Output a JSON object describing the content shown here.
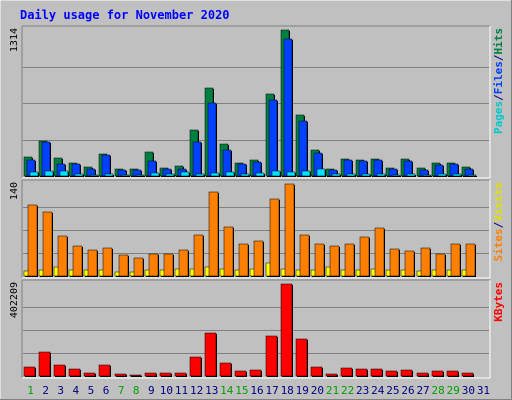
{
  "chart_data": {
    "type": "bar",
    "title": "Daily usage for November 2020",
    "colors": {
      "background": "#c0c0c0",
      "frame_light": "#ffffff",
      "frame_dark": "#808080",
      "title": "#0000ff",
      "grid": "#808080",
      "hits": "#008040",
      "files": "#0040ff",
      "pages": "#00e0ff",
      "visits": "#ffff00",
      "sites": "#ff8000",
      "kbytes": "#ff0000",
      "weekend_day": "#00a000",
      "weekday_day": "#000080"
    },
    "days": [
      1,
      2,
      3,
      4,
      5,
      6,
      7,
      8,
      9,
      10,
      11,
      12,
      13,
      14,
      15,
      16,
      17,
      18,
      19,
      20,
      21,
      22,
      23,
      24,
      25,
      26,
      27,
      28,
      29,
      30,
      31
    ],
    "weekend_days": [
      1,
      7,
      8,
      14,
      15,
      21,
      22,
      28,
      29
    ],
    "panels": [
      {
        "id": "hits-files-pages",
        "ymax": 1314,
        "ymax_label": "1314",
        "legend": [
          {
            "text": "Pages",
            "color": "#00c8c8"
          },
          {
            "text": "/",
            "color": "#000080"
          },
          {
            "text": "Files",
            "color": "#0040ff"
          },
          {
            "text": "/",
            "color": "#000080"
          },
          {
            "text": "Hits",
            "color": "#008040"
          }
        ],
        "series": [
          {
            "name": "Hits",
            "color": "#008040",
            "values": [
              175,
              311,
              158,
              121,
              79,
              202,
              66,
              62,
              217,
              72,
              87,
              414,
              795,
              288,
              121,
              146,
              742,
              1314,
              551,
              233,
              67,
              151,
              145,
              151,
              76,
              151,
              73,
              118,
              118,
              78,
              0
            ]
          },
          {
            "name": "Files",
            "color": "#0040ff",
            "values": [
              148,
              307,
              110,
              110,
              62,
              189,
              58,
              54,
              131,
              66,
              62,
              305,
              657,
              233,
              109,
              124,
              682,
              1233,
              498,
              210,
              55,
              144,
              131,
              144,
              64,
              139,
              56,
              102,
              106,
              64,
              0
            ]
          },
          {
            "name": "Pages",
            "color": "#00e0ff",
            "values": [
              38,
              41,
              46,
              18,
              10,
              17,
              8,
              10,
              27,
              14,
              38,
              19,
              30,
              32,
              18,
              29,
              41,
              39,
              44,
              63,
              16,
              16,
              14,
              17,
              10,
              14,
              10,
              16,
              21,
              10,
              0
            ]
          }
        ]
      },
      {
        "id": "visits-sites",
        "ymax": 140,
        "ymax_label": "140",
        "legend": [
          {
            "text": "Sites",
            "color": "#ff8000"
          },
          {
            "text": "/",
            "color": "#000080"
          },
          {
            "text": "Visits",
            "color": "#e0e000"
          }
        ],
        "series": [
          {
            "name": "Visits",
            "color": "#ffff00",
            "values": [
              8,
              9,
              14,
              9,
              9,
              9,
              6,
              6,
              9,
              9,
              11,
              11,
              13,
              11,
              9,
              11,
              20,
              10,
              9,
              9,
              13,
              9,
              9,
              11,
              9,
              9,
              8,
              9,
              9,
              9,
              0
            ]
          },
          {
            "name": "Sites",
            "color": "#ff8000",
            "values": [
              108,
              97,
              61,
              45,
              39,
              42,
              32,
              27,
              33,
              33,
              39,
              63,
              128,
              74,
              48,
              53,
              117,
              140,
              63,
              48,
              46,
              48,
              59,
              73,
              41,
              38,
              43,
              34,
              49,
              48,
              0
            ]
          }
        ]
      },
      {
        "id": "kbytes",
        "ymax": 402209,
        "ymax_label": "402209",
        "legend": [
          {
            "text": "KBytes",
            "color": "#ff0000"
          }
        ],
        "series": [
          {
            "name": "KBytes",
            "color": "#ff0000",
            "values": [
              41000,
              107000,
              50000,
              29000,
              15000,
              48000,
              8000,
              5000,
              14000,
              14000,
              12000,
              82000,
              190000,
              58000,
              22000,
              25000,
              174000,
              402209,
              160000,
              40000,
              10000,
              35000,
              30000,
              30000,
              20000,
              25000,
              15000,
              20000,
              21000,
              14000,
              0
            ]
          }
        ]
      }
    ]
  }
}
